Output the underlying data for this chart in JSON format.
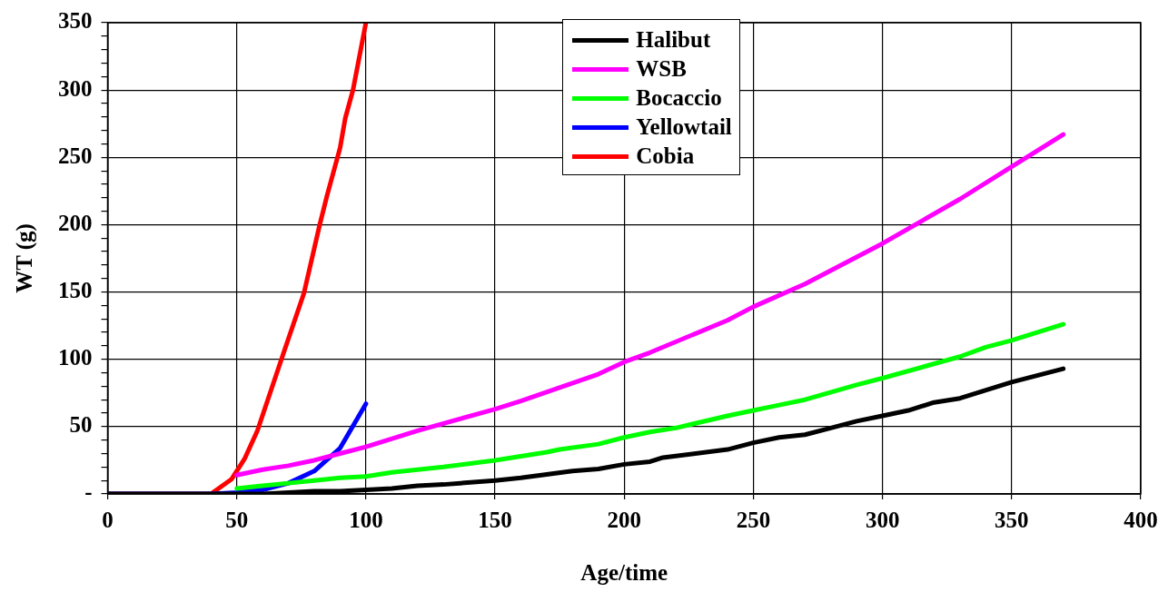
{
  "chart_data": {
    "type": "line",
    "xlabel": "Age/time",
    "ylabel": "WT (g)",
    "xlim": [
      0,
      400
    ],
    "xticks": [
      0,
      50,
      100,
      150,
      200,
      250,
      300,
      350,
      400
    ],
    "ylim": [
      0,
      350
    ],
    "yticks": [
      {
        "value": 0,
        "label": "-"
      },
      {
        "value": 10,
        "label": null
      },
      {
        "value": 20,
        "label": null
      },
      {
        "value": 30,
        "label": null
      },
      {
        "value": 40,
        "label": null
      },
      50,
      {
        "value": 60,
        "label": null
      },
      {
        "value": 70,
        "label": null
      },
      {
        "value": 80,
        "label": null
      },
      {
        "value": 90,
        "label": null
      },
      100,
      {
        "value": 110,
        "label": null
      },
      {
        "value": 120,
        "label": null
      },
      {
        "value": 130,
        "label": null
      },
      {
        "value": 140,
        "label": null
      },
      150,
      {
        "value": 160,
        "label": null
      },
      {
        "value": 170,
        "label": null
      },
      {
        "value": 180,
        "label": null
      },
      {
        "value": 190,
        "label": null
      },
      200,
      {
        "value": 210,
        "label": null
      },
      {
        "value": 220,
        "label": null
      },
      {
        "value": 230,
        "label": null
      },
      {
        "value": 240,
        "label": null
      },
      250,
      {
        "value": 260,
        "label": null
      },
      {
        "value": 270,
        "label": null
      },
      {
        "value": 280,
        "label": null
      },
      {
        "value": 290,
        "label": null
      },
      300,
      {
        "value": 310,
        "label": null
      },
      {
        "value": 320,
        "label": null
      },
      {
        "value": 330,
        "label": null
      },
      {
        "value": 340,
        "label": null
      },
      350
    ],
    "grid": true,
    "legend": "top",
    "marker": "none",
    "line_style": "solid",
    "series": [
      {
        "name": "Halibut",
        "color": "#000000",
        "x": [
          0,
          50,
          60,
          70,
          80,
          90,
          100,
          110,
          120,
          130,
          150,
          160,
          180,
          190,
          200,
          210,
          215,
          240,
          250,
          260,
          270,
          280,
          290,
          300,
          310,
          320,
          330,
          350,
          370
        ],
        "values": [
          0,
          0,
          0,
          1,
          2,
          2,
          3,
          4,
          6,
          7,
          10,
          12,
          17,
          18.5,
          22,
          24,
          27,
          33,
          38,
          42,
          44,
          49,
          54,
          58,
          62,
          68,
          71,
          83,
          93
        ]
      },
      {
        "name": "WSB",
        "color": "#ff00ff",
        "x": [
          50,
          60,
          70,
          80,
          90,
          100,
          120,
          150,
          160,
          190,
          200,
          210,
          240,
          250,
          270,
          300,
          330,
          350,
          370
        ],
        "values": [
          14,
          18,
          21,
          25,
          30,
          35,
          47,
          63,
          69,
          89,
          98,
          105,
          129,
          139,
          156,
          186,
          219,
          243,
          267
        ]
      },
      {
        "name": "Bocaccio",
        "color": "#00ff00",
        "x": [
          50,
          60,
          70,
          80,
          90,
          100,
          110,
          120,
          130,
          150,
          170,
          175,
          190,
          200,
          210,
          220,
          240,
          250,
          260,
          270,
          290,
          300,
          330,
          340,
          350,
          370
        ],
        "values": [
          4,
          6,
          8,
          10,
          12,
          13,
          16,
          18,
          20,
          25,
          31,
          33,
          37,
          42,
          46,
          49,
          58,
          62,
          66,
          70,
          81,
          86,
          102,
          109,
          114,
          126
        ]
      },
      {
        "name": "Yellowtail",
        "color": "#0000ff",
        "x": [
          0,
          40,
          50,
          60,
          70,
          80,
          90,
          100
        ],
        "values": [
          0,
          0,
          1,
          3,
          8,
          17,
          34,
          67
        ]
      },
      {
        "name": "Cobia",
        "color": "#ff0000",
        "x": [
          0,
          40,
          48,
          53,
          58,
          68,
          76,
          82,
          85,
          90,
          92,
          95,
          100
        ],
        "values": [
          0,
          0,
          11,
          26,
          47,
          104,
          149,
          199,
          222,
          257,
          279,
          300,
          350
        ]
      }
    ]
  }
}
